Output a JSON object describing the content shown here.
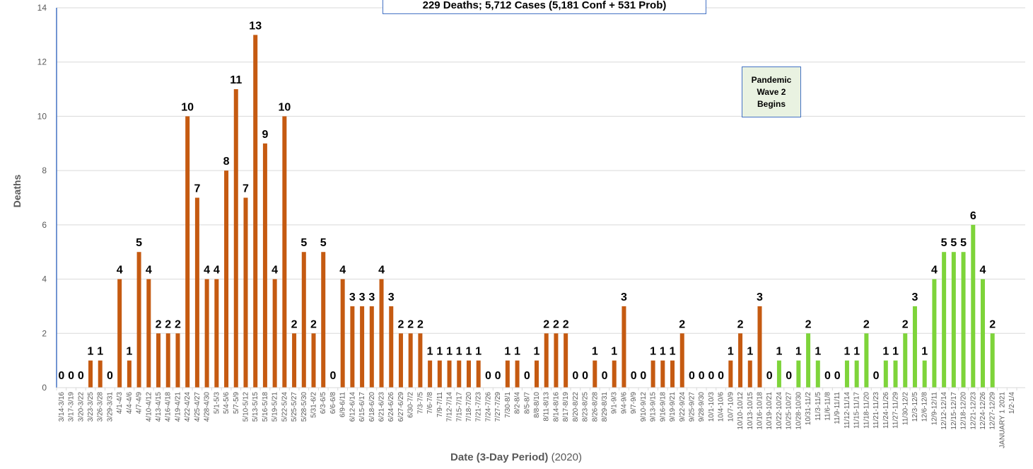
{
  "title": "229 Deaths; 5,712 Cases (5,181 Conf + 531 Prob)",
  "annotation": {
    "lines": [
      "Pandemic",
      "Wave 2",
      "Begins"
    ]
  },
  "axes": {
    "ylabel": "Deaths",
    "xlabel_main": "Date (3-Day Period)",
    "xlabel_suffix": "(2020)"
  },
  "footnote": "",
  "colors": {
    "wave1": "#c55a11",
    "wave2": "#7ed43a",
    "axis": "#4472c4",
    "grid": "#d9d9d9",
    "text": "#595959"
  },
  "chart_data": {
    "type": "bar",
    "title": "229 Deaths; 5,712 Cases (5,181 Conf + 531 Prob)",
    "xlabel": "Date (3-Day Period) (2020)",
    "ylabel": "Deaths",
    "ylim": [
      0,
      14
    ],
    "yticks": [
      0,
      2,
      4,
      6,
      8,
      10,
      12,
      14
    ],
    "grid": true,
    "categories": [
      "3/14-3/16",
      "3/17-3/19",
      "3/20-3/22",
      "3/23-3/25",
      "3/26-3/28",
      "3/29-3/31",
      "4/1-4/3",
      "4/4-4/6",
      "4/7-4/9",
      "4/10-4/12",
      "4/13-4/15",
      "4/16-4/18",
      "4/19-4/21",
      "4/22-4/24",
      "4/25-4/27",
      "4/28-4/30",
      "5/1-5/3",
      "5/4-5/6",
      "5/7-5/9",
      "5/10-5/12",
      "5/13-5/15",
      "5/16-5/18",
      "5/19-5/21",
      "5/22-5/24",
      "5/25-5/27",
      "5/28-5/30",
      "5/31-6/2",
      "6/3-6/5",
      "6/6-6/8",
      "6/9-6/11",
      "6/12-6/14",
      "6/15-6/17",
      "6/18-6/20",
      "6/21-6/23",
      "6/24-6/26",
      "6/27-6/29",
      "6/30-7/2",
      "7/3-7/5",
      "7/6-7/8",
      "7/9-7/11",
      "7/12-7/14",
      "7/15-7/17",
      "7/18-7/20",
      "7/21-7/23",
      "7/24-7/26",
      "7/27-7/29",
      "7/30-8/1",
      "8/2-8/4",
      "8/5-8/7",
      "8/8-8/10",
      "8/11-8/13",
      "8/14-8/16",
      "8/17-8/19",
      "8/20-8/22",
      "8/23-8/25",
      "8/26-8/28",
      "8/29-8/31",
      "9/1-9/3",
      "9/4-9/6",
      "9/7-9/9",
      "9/10-9/12",
      "9/13-9/15",
      "9/16-9/18",
      "9/19-9/21",
      "9/22-9/24",
      "9/25-9/27",
      "9/28-9/30",
      "10/1-10/3",
      "10/4-10/6",
      "10/7-10/9",
      "10/10-10/12",
      "10/13-10/15",
      "10/16-10/18",
      "10/19-10/21",
      "10/22-10/24",
      "10/25-10/27",
      "10/28-10/30",
      "10/31-11/2",
      "11/3-11/5",
      "11/6-11/8",
      "11/9-11/11",
      "11/12-11/14",
      "11/15-11/17",
      "11/18-11/20",
      "11/21-11/23",
      "11/24-11/26",
      "11/27-11/29",
      "11/30-12/2",
      "12/3-12/5",
      "12/6-12/8",
      "12/9-12/11",
      "12/12-12/14",
      "12/15-12/17",
      "12/18-12/20",
      "12/21-12/23",
      "12/24-12/26",
      "12/27-12/29",
      "JANUARY 1 2021",
      "1/2-1/4"
    ],
    "values": [
      0,
      0,
      0,
      1,
      1,
      0,
      4,
      1,
      5,
      4,
      2,
      2,
      2,
      10,
      7,
      4,
      4,
      8,
      11,
      7,
      13,
      9,
      4,
      10,
      2,
      5,
      2,
      5,
      0,
      4,
      3,
      3,
      3,
      4,
      3,
      2,
      2,
      2,
      1,
      1,
      1,
      1,
      1,
      1,
      0,
      0,
      1,
      1,
      0,
      1,
      2,
      2,
      2,
      0,
      0,
      1,
      0,
      1,
      3,
      0,
      0,
      1,
      1,
      1,
      2,
      0,
      0,
      0,
      0,
      1,
      2,
      1,
      3,
      0,
      1,
      0,
      1,
      2,
      1,
      0,
      0,
      1,
      1,
      2,
      0,
      1,
      1,
      2,
      3,
      1,
      4,
      5,
      5,
      5,
      6,
      4,
      2,
      null,
      null
    ],
    "series_split": {
      "wave1_end_index": 72,
      "wave1_label": "",
      "wave2_label": ""
    }
  }
}
